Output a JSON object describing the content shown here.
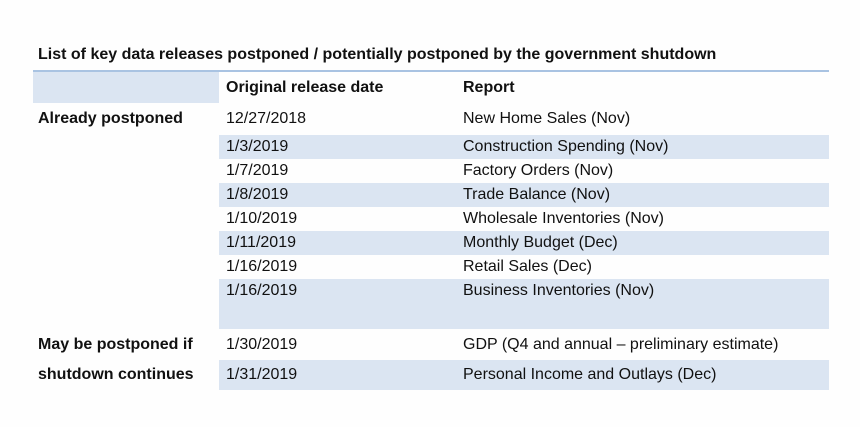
{
  "title": "List of key data releases postponed / potentially postponed by the government shutdown",
  "columns": {
    "section": "",
    "date": "Original release date",
    "report": "Report"
  },
  "sections": [
    {
      "label": "Already postponed",
      "rows": [
        {
          "date": "12/27/2018",
          "report": "New Home Sales (Nov)"
        },
        {
          "date": "1/3/2019",
          "report": "Construction Spending (Nov)"
        },
        {
          "date": "1/7/2019",
          "report": "Factory Orders (Nov)"
        },
        {
          "date": "1/8/2019",
          "report": "Trade Balance (Nov)"
        },
        {
          "date": "1/10/2019",
          "report": "Wholesale Inventories (Nov)"
        },
        {
          "date": "1/11/2019",
          "report": "Monthly Budget (Dec)"
        },
        {
          "date": "1/16/2019",
          "report": "Retail Sales (Dec)"
        },
        {
          "date": "1/16/2019",
          "report": "Business Inventories (Nov)"
        }
      ]
    },
    {
      "label_line1": "May be postponed if",
      "label_line2": "shutdown continues",
      "rows": [
        {
          "date": "1/30/2019",
          "report": "GDP (Q4 and annual – preliminary estimate)"
        },
        {
          "date": "1/31/2019",
          "report": "Personal Income and Outlays (Dec)"
        }
      ]
    }
  ],
  "colors": {
    "band": "#dbe5f2",
    "rule": "#a9c3e2"
  }
}
